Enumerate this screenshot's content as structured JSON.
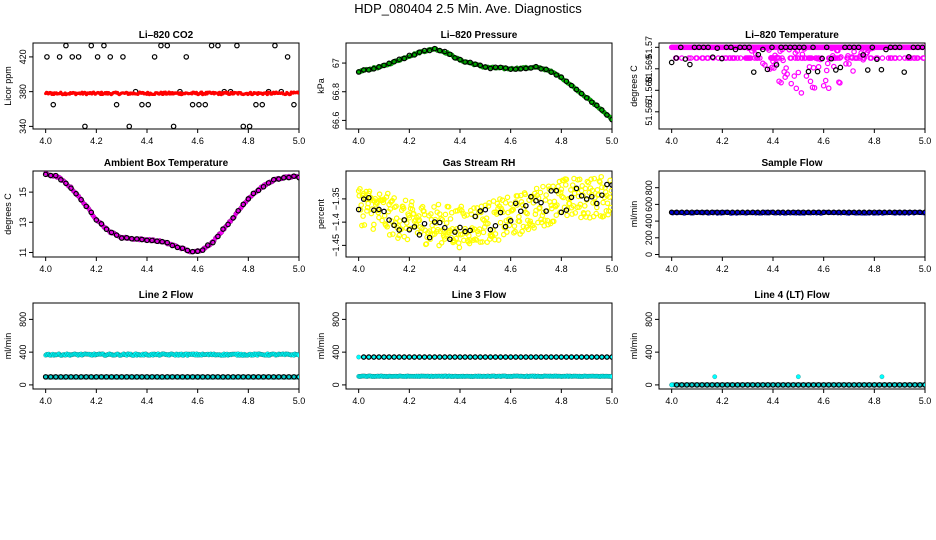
{
  "figure": {
    "title": "HDP_080404  2.5 Min. Ave. Diagnostics"
  },
  "colors": {
    "raw_points": "#000000",
    "co2": "#ff0000",
    "pressure": "#00c000",
    "temperature": "#ff00ff",
    "rh": "#ffff00",
    "flow": "#0000ff",
    "line_flow": "#00ffff"
  },
  "chart_data": [
    {
      "id": "li820-co2",
      "type": "scatter",
      "title": "Li–820 CO2",
      "ylabel": "Licor ppm",
      "xlim": [
        3.95,
        5.0
      ],
      "ylim": [
        337,
        436
      ],
      "xticks": [
        4.0,
        4.2,
        4.4,
        4.6,
        4.8,
        5.0
      ],
      "yticks": [
        340,
        380,
        420
      ],
      "series": [
        {
          "name": "raw",
          "color": "#000000",
          "shape": "circle",
          "kind": "co2_raw",
          "x_start": 4.0,
          "x_end": 5.0,
          "level_values": [
            340,
            365,
            380,
            420,
            433
          ]
        },
        {
          "name": "avg",
          "color": "#ff0000",
          "shape": "dot",
          "kind": "band",
          "x_start": 4.0,
          "x_end": 5.0,
          "y_center": 378,
          "y_spread": 1.5
        }
      ]
    },
    {
      "id": "li820-pressure",
      "type": "scatter",
      "title": "Li–820 Pressure",
      "ylabel": "kPa",
      "xlim": [
        3.95,
        5.0
      ],
      "ylim": [
        66.54,
        67.14
      ],
      "xticks": [
        4.0,
        4.2,
        4.4,
        4.6,
        4.8,
        5.0
      ],
      "yticks": [
        66.6,
        66.8,
        67.0
      ],
      "series": [
        {
          "name": "avg",
          "color": "#00c000",
          "shape": "filled",
          "kind": "curve",
          "x": [
            4.0,
            4.1,
            4.2,
            4.25,
            4.3,
            4.35,
            4.4,
            4.5,
            4.6,
            4.7,
            4.75,
            4.8,
            4.9,
            5.0
          ],
          "y": [
            66.94,
            66.98,
            67.05,
            67.08,
            67.1,
            67.07,
            67.02,
            66.97,
            66.96,
            66.97,
            66.95,
            66.9,
            66.76,
            66.61
          ]
        },
        {
          "name": "raw",
          "color": "#000000",
          "shape": "circle",
          "kind": "curve_sample",
          "x": [
            4.0,
            4.1,
            4.2,
            4.25,
            4.3,
            4.35,
            4.4,
            4.5,
            4.6,
            4.7,
            4.75,
            4.8,
            4.9,
            5.0
          ],
          "y": [
            66.94,
            66.98,
            67.05,
            67.08,
            67.1,
            67.07,
            67.02,
            66.97,
            66.96,
            66.97,
            66.95,
            66.9,
            66.76,
            66.61
          ]
        }
      ]
    },
    {
      "id": "li820-temperature",
      "type": "scatter",
      "title": "Li–820 Temperature",
      "ylabel": "degrees C",
      "xlim": [
        3.95,
        5.0
      ],
      "ylim": [
        51.5662,
        51.5702
      ],
      "xticks": [
        4.0,
        4.2,
        4.4,
        4.6,
        4.8,
        5.0
      ],
      "yticks": [
        51.567,
        51.568,
        51.569,
        51.57
      ],
      "series": [
        {
          "name": "avg",
          "color": "#ff00ff",
          "shape": "circle",
          "kind": "temp_scatter",
          "x_start": 4.0,
          "x_end": 5.0,
          "top": 51.57,
          "second": 51.5695
        },
        {
          "name": "raw",
          "color": "#000000",
          "shape": "circle",
          "kind": "temp_raw",
          "x_start": 4.0,
          "x_end": 5.0,
          "top": 51.57
        }
      ]
    },
    {
      "id": "ambient-box-temperature",
      "type": "scatter",
      "title": "Ambient Box Temperature",
      "ylabel": "degrees C",
      "xlim": [
        3.95,
        5.0
      ],
      "ylim": [
        10.7,
        16.4
      ],
      "xticks": [
        4.0,
        4.2,
        4.4,
        4.6,
        4.8,
        5.0
      ],
      "yticks": [
        11,
        13,
        15
      ],
      "series": [
        {
          "name": "avg",
          "color": "#ff00ff",
          "shape": "filled",
          "kind": "curve",
          "x": [
            4.0,
            4.05,
            4.1,
            4.15,
            4.2,
            4.25,
            4.3,
            4.35,
            4.4,
            4.45,
            4.5,
            4.55,
            4.58,
            4.62,
            4.66,
            4.7,
            4.75,
            4.8,
            4.85,
            4.9,
            4.95,
            5.0
          ],
          "y": [
            16.2,
            16.0,
            15.3,
            14.3,
            13.2,
            12.4,
            12.0,
            11.9,
            11.85,
            11.75,
            11.5,
            11.2,
            11.0,
            11.2,
            11.7,
            12.5,
            13.5,
            14.6,
            15.3,
            15.8,
            16.0,
            16.0
          ]
        },
        {
          "name": "raw",
          "color": "#000000",
          "shape": "circle",
          "kind": "curve_sample",
          "x": [
            4.0,
            4.05,
            4.1,
            4.15,
            4.2,
            4.25,
            4.3,
            4.35,
            4.4,
            4.45,
            4.5,
            4.55,
            4.58,
            4.62,
            4.66,
            4.7,
            4.75,
            4.8,
            4.85,
            4.9,
            4.95,
            5.0
          ],
          "y": [
            16.2,
            16.0,
            15.3,
            14.3,
            13.2,
            12.4,
            12.0,
            11.9,
            11.85,
            11.75,
            11.5,
            11.2,
            11.0,
            11.2,
            11.7,
            12.5,
            13.5,
            14.6,
            15.3,
            15.8,
            16.0,
            16.0
          ]
        }
      ]
    },
    {
      "id": "gas-stream-rh",
      "type": "scatter",
      "title": "Gas Stream RH",
      "ylabel": "percent",
      "xlim": [
        3.95,
        5.0
      ],
      "ylim": [
        -1.475,
        -1.29
      ],
      "xticks": [
        4.0,
        4.2,
        4.4,
        4.6,
        4.8,
        5.0
      ],
      "yticks": [
        -1.45,
        -1.4,
        -1.35
      ],
      "series": [
        {
          "name": "avg",
          "color": "#ffff00",
          "shape": "circle",
          "kind": "rh_noise",
          "x": [
            4.0,
            4.2,
            4.4,
            4.6,
            4.8,
            5.0
          ],
          "y": [
            -1.36,
            -1.4,
            -1.41,
            -1.39,
            -1.35,
            -1.345
          ],
          "spread": 0.045
        },
        {
          "name": "raw",
          "color": "#000000",
          "shape": "circle",
          "kind": "rh_raw",
          "x": [
            4.0,
            4.2,
            4.4,
            4.6,
            4.8,
            5.0
          ],
          "y": [
            -1.36,
            -1.4,
            -1.41,
            -1.39,
            -1.35,
            -1.345
          ],
          "spread": 0.03
        }
      ]
    },
    {
      "id": "sample-flow",
      "type": "scatter",
      "title": "Sample Flow",
      "ylabel": "ml/min",
      "xlim": [
        3.95,
        5.0
      ],
      "ylim": [
        -30,
        1000
      ],
      "xticks": [
        4.0,
        4.2,
        4.4,
        4.6,
        4.8,
        5.0
      ],
      "yticks": [
        0,
        200,
        400,
        600,
        800
      ],
      "series": [
        {
          "name": "avg",
          "color": "#0000ff",
          "shape": "filled",
          "kind": "flat",
          "x_start": 4.0,
          "x_end": 5.0,
          "y": 500,
          "jitter": 8
        },
        {
          "name": "raw",
          "color": "#000000",
          "shape": "circle",
          "kind": "flat_sparse",
          "x_start": 4.0,
          "x_end": 5.0,
          "y": 505
        }
      ]
    },
    {
      "id": "line-2-flow",
      "type": "scatter",
      "title": "Line 2 Flow",
      "ylabel": "ml/min",
      "xlim": [
        3.95,
        5.0
      ],
      "ylim": [
        -50,
        1000
      ],
      "xticks": [
        4.0,
        4.2,
        4.4,
        4.6,
        4.8,
        5.0
      ],
      "yticks": [
        0,
        400,
        800
      ],
      "series": [
        {
          "name": "avg-high",
          "color": "#00ffff",
          "shape": "filled",
          "kind": "flat",
          "x_start": 4.0,
          "x_end": 5.0,
          "y": 370,
          "jitter": 10
        },
        {
          "name": "avg-low",
          "color": "#00ffff",
          "shape": "filled",
          "kind": "flat",
          "x_start": 4.0,
          "x_end": 5.0,
          "y": 95,
          "jitter": 3
        },
        {
          "name": "raw",
          "color": "#000000",
          "shape": "circle",
          "kind": "flat_sparse",
          "x_start": 4.0,
          "x_end": 5.0,
          "y": 98
        }
      ]
    },
    {
      "id": "line-3-flow",
      "type": "scatter",
      "title": "Line 3 Flow",
      "ylabel": "ml/min",
      "xlim": [
        3.95,
        5.0
      ],
      "ylim": [
        -50,
        1000
      ],
      "xticks": [
        4.0,
        4.2,
        4.4,
        4.6,
        4.8,
        5.0
      ],
      "yticks": [
        0,
        400,
        800
      ],
      "series": [
        {
          "name": "avg-low",
          "color": "#00ffff",
          "shape": "filled",
          "kind": "flat",
          "x_start": 4.0,
          "x_end": 5.0,
          "y": 105,
          "jitter": 4
        },
        {
          "name": "avg-high",
          "color": "#00ffff",
          "shape": "filled",
          "kind": "flat_sparse",
          "x_start": 4.0,
          "x_end": 5.0,
          "y": 340
        },
        {
          "name": "raw",
          "color": "#000000",
          "shape": "circle",
          "kind": "flat_sparse",
          "x_start": 4.02,
          "x_end": 5.0,
          "y": 340
        }
      ]
    },
    {
      "id": "line-4-flow",
      "type": "scatter",
      "title": "Line 4 (LT) Flow",
      "ylabel": "ml/min",
      "xlim": [
        3.95,
        5.0
      ],
      "ylim": [
        -50,
        1000
      ],
      "xticks": [
        4.0,
        4.2,
        4.4,
        4.6,
        4.8,
        5.0
      ],
      "yticks": [
        0,
        400,
        800
      ],
      "series": [
        {
          "name": "avg",
          "color": "#00ffff",
          "shape": "filled",
          "kind": "flat",
          "x_start": 4.0,
          "x_end": 5.0,
          "y": 0,
          "jitter": 2
        },
        {
          "name": "spikes",
          "color": "#00ffff",
          "shape": "filled",
          "kind": "points",
          "x": [
            4.0,
            4.17,
            4.5,
            4.83
          ],
          "y": [
            0,
            100,
            100,
            100
          ]
        },
        {
          "name": "raw",
          "color": "#000000",
          "shape": "circle",
          "kind": "flat_sparse",
          "x_start": 4.02,
          "x_end": 5.0,
          "y": 0
        }
      ]
    }
  ]
}
